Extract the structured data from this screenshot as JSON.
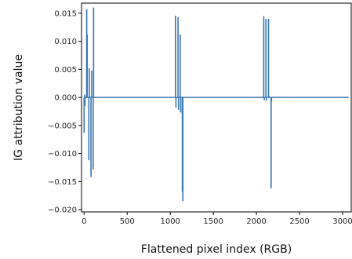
{
  "chart_data": {
    "type": "line",
    "title": "",
    "xlabel": "Flattened pixel index (RGB)",
    "ylabel": "IG attribution value",
    "xlim": [
      -30,
      3100
    ],
    "ylim": [
      -0.0204,
      0.0168
    ],
    "x_ticks": [
      0,
      500,
      1000,
      1500,
      2000,
      2500,
      3000
    ],
    "x_tick_labels": [
      "0",
      "500",
      "1000",
      "1500",
      "2000",
      "2500",
      "3000"
    ],
    "y_ticks": [
      -0.02,
      -0.015,
      -0.01,
      -0.005,
      0.0,
      0.005,
      0.01,
      0.015
    ],
    "y_tick_labels": [
      "−0.020",
      "−0.015",
      "−0.010",
      "−0.005",
      "0.000",
      "0.005",
      "0.010",
      "0.015"
    ],
    "grid": false,
    "legend": "none",
    "series": [
      {
        "color": "#3a76b0",
        "spikes": [
          [
            0,
            -0.0063
          ],
          [
            5,
            0.0005
          ],
          [
            10,
            -0.0015
          ],
          [
            30,
            0.0157
          ],
          [
            36,
            0.0112
          ],
          [
            55,
            -0.0112
          ],
          [
            60,
            0.0052
          ],
          [
            80,
            -0.0142
          ],
          [
            88,
            0.0048
          ],
          [
            105,
            -0.0128
          ],
          [
            110,
            0.016
          ],
          [
            1060,
            0.0146
          ],
          [
            1066,
            -0.0018
          ],
          [
            1090,
            0.0143
          ],
          [
            1096,
            -0.0022
          ],
          [
            1115,
            0.0112
          ],
          [
            1121,
            -0.0027
          ],
          [
            1140,
            -0.0168
          ],
          [
            1146,
            -0.0185
          ],
          [
            2085,
            0.0145
          ],
          [
            2091,
            -0.0005
          ],
          [
            2110,
            0.014
          ],
          [
            2116,
            -0.0006
          ],
          [
            2140,
            0.014
          ],
          [
            2146,
            0.0002
          ],
          [
            2170,
            -0.0162
          ],
          [
            2175,
            -0.0007
          ]
        ],
        "x_max": 3071
      }
    ]
  }
}
